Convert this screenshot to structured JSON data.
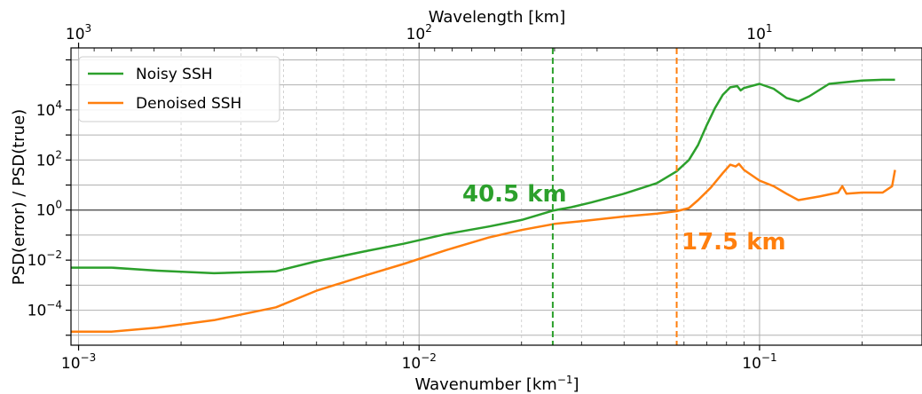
{
  "chart_data": {
    "type": "line",
    "title": "",
    "xlabel": "Wavenumber [km",
    "xlabel_sup": "−1",
    "xlabel_close": "]",
    "ylabel": "PSD(error) / PSD(true)",
    "top_xlabel": "Wavelength [km]",
    "xscale": "log",
    "yscale": "log",
    "xlim": [
      0.00095,
      0.3
    ],
    "ylim": [
      4e-06,
      3000000
    ],
    "grid": true,
    "legend_position": "top-left",
    "x_ticks": [
      {
        "value": 0.001,
        "base": "10",
        "exp": "−3"
      },
      {
        "value": 0.01,
        "base": "10",
        "exp": "−2"
      },
      {
        "value": 0.1,
        "base": "10",
        "exp": "−1"
      }
    ],
    "y_ticks": [
      {
        "value": 0.0001,
        "base": "10",
        "exp": "−4"
      },
      {
        "value": 0.01,
        "base": "10",
        "exp": "−2"
      },
      {
        "value": 1,
        "base": "10",
        "exp": "0"
      },
      {
        "value": 100,
        "base": "10",
        "exp": "2"
      },
      {
        "value": 10000,
        "base": "10",
        "exp": "4"
      }
    ],
    "top_ticks": [
      {
        "wavelength": 1000,
        "base": "10",
        "exp": "3"
      },
      {
        "wavelength": 100,
        "base": "10",
        "exp": "2"
      },
      {
        "wavelength": 10,
        "base": "10",
        "exp": "1"
      }
    ],
    "reference_line": 1,
    "series": [
      {
        "name": "Noisy SSH",
        "color": "#2ca02c",
        "points": [
          [
            0.00095,
            0.005
          ],
          [
            0.00125,
            0.005
          ],
          [
            0.0017,
            0.0038
          ],
          [
            0.0025,
            0.003
          ],
          [
            0.0038,
            0.0036
          ],
          [
            0.005,
            0.009
          ],
          [
            0.007,
            0.023
          ],
          [
            0.009,
            0.045
          ],
          [
            0.012,
            0.11
          ],
          [
            0.016,
            0.22
          ],
          [
            0.02,
            0.4
          ],
          [
            0.0247,
            0.95
          ],
          [
            0.028,
            1.3
          ],
          [
            0.032,
            2
          ],
          [
            0.04,
            4.5
          ],
          [
            0.05,
            12
          ],
          [
            0.057,
            35
          ],
          [
            0.062,
            100
          ],
          [
            0.066,
            400
          ],
          [
            0.07,
            2500
          ],
          [
            0.074,
            12000
          ],
          [
            0.078,
            40000
          ],
          [
            0.082,
            80000
          ],
          [
            0.086,
            90000
          ],
          [
            0.088,
            60000
          ],
          [
            0.09,
            75000
          ],
          [
            0.1,
            110000
          ],
          [
            0.11,
            70000
          ],
          [
            0.12,
            30000
          ],
          [
            0.13,
            22000
          ],
          [
            0.14,
            35000
          ],
          [
            0.16,
            110000
          ],
          [
            0.2,
            150000
          ],
          [
            0.23,
            160000
          ],
          [
            0.25,
            160000
          ]
        ]
      },
      {
        "name": "Denoised SSH",
        "color": "#ff7f0e",
        "points": [
          [
            0.00095,
            1.4e-05
          ],
          [
            0.00125,
            1.4e-05
          ],
          [
            0.0017,
            2e-05
          ],
          [
            0.0025,
            4e-05
          ],
          [
            0.0038,
            0.00013
          ],
          [
            0.005,
            0.0006
          ],
          [
            0.007,
            0.0025
          ],
          [
            0.009,
            0.007
          ],
          [
            0.012,
            0.025
          ],
          [
            0.016,
            0.08
          ],
          [
            0.02,
            0.16
          ],
          [
            0.025,
            0.28
          ],
          [
            0.03,
            0.36
          ],
          [
            0.04,
            0.55
          ],
          [
            0.05,
            0.72
          ],
          [
            0.0571,
            0.9
          ],
          [
            0.062,
            1.2
          ],
          [
            0.066,
            2.5
          ],
          [
            0.072,
            8
          ],
          [
            0.078,
            30
          ],
          [
            0.082,
            65
          ],
          [
            0.085,
            55
          ],
          [
            0.087,
            70
          ],
          [
            0.09,
            40
          ],
          [
            0.1,
            15
          ],
          [
            0.11,
            9
          ],
          [
            0.12,
            4.5
          ],
          [
            0.13,
            2.5
          ],
          [
            0.15,
            3.5
          ],
          [
            0.17,
            5
          ],
          [
            0.175,
            9
          ],
          [
            0.18,
            4.5
          ],
          [
            0.2,
            5
          ],
          [
            0.23,
            5
          ],
          [
            0.245,
            9
          ],
          [
            0.25,
            40
          ]
        ]
      }
    ],
    "vertical_markers": [
      {
        "x": 0.0247,
        "color": "#2ca02c",
        "label": "40.5 km",
        "label_x": 0.0134,
        "label_y": 5
      },
      {
        "x": 0.0571,
        "color": "#ff7f0e",
        "label": "17.5 km",
        "label_x": 0.059,
        "label_y": 0.06
      }
    ]
  }
}
